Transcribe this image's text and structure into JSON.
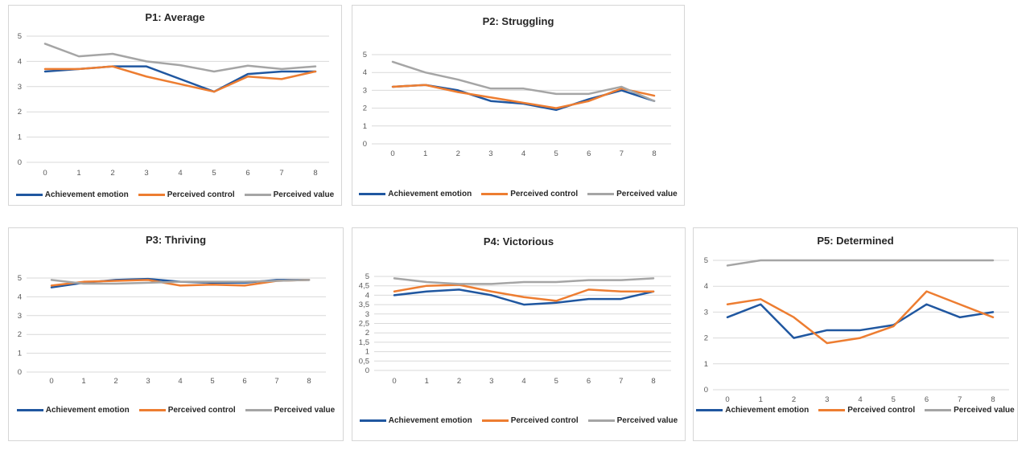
{
  "colors": {
    "achievement_emotion": "#2057A0",
    "perceived_control": "#ED7D31",
    "perceived_value": "#A5A5A5",
    "gridline": "#D9D9D9",
    "tick_text": "#595959",
    "title_text": "#262626"
  },
  "chart_data": [
    {
      "id": "p1",
      "type": "line",
      "title": "P1: Average",
      "x": [
        0,
        1,
        2,
        3,
        4,
        5,
        6,
        7,
        8
      ],
      "xlabel": "",
      "ylabel": "",
      "ylim": [
        0,
        5
      ],
      "yticks": [
        "0",
        "1",
        "2",
        "3",
        "4",
        "5"
      ],
      "grid": true,
      "legend_position": "bottom",
      "series": [
        {
          "name": "Achievement emotion",
          "color": "#2057A0",
          "values": [
            3.6,
            3.7,
            3.8,
            3.8,
            3.3,
            2.8,
            3.5,
            3.6,
            3.6
          ]
        },
        {
          "name": "Perceived control",
          "color": "#ED7D31",
          "values": [
            3.7,
            3.7,
            3.8,
            3.4,
            3.1,
            2.8,
            3.4,
            3.3,
            3.6
          ]
        },
        {
          "name": "Perceived value",
          "color": "#A5A5A5",
          "values": [
            4.7,
            4.2,
            4.3,
            4.0,
            3.85,
            3.6,
            3.83,
            3.7,
            3.8
          ]
        }
      ]
    },
    {
      "id": "p2",
      "type": "line",
      "title": "P2: Struggling",
      "x": [
        0,
        1,
        2,
        3,
        4,
        5,
        6,
        7,
        8
      ],
      "xlabel": "",
      "ylabel": "",
      "ylim": [
        0,
        5
      ],
      "yticks": [
        "0",
        "1",
        "2",
        "3",
        "4",
        "5"
      ],
      "grid": true,
      "legend_position": "bottom",
      "series": [
        {
          "name": "Achievement emotion",
          "color": "#2057A0",
          "values": [
            3.2,
            3.3,
            3.0,
            2.4,
            2.25,
            1.9,
            2.5,
            3.0,
            2.4
          ]
        },
        {
          "name": "Perceived control",
          "color": "#ED7D31",
          "values": [
            3.2,
            3.3,
            2.9,
            2.6,
            2.3,
            2.0,
            2.4,
            3.1,
            2.7
          ]
        },
        {
          "name": "Perceived value",
          "color": "#A5A5A5",
          "values": [
            4.6,
            4.0,
            3.6,
            3.1,
            3.1,
            2.8,
            2.8,
            3.2,
            2.4
          ]
        }
      ]
    },
    {
      "id": "p3",
      "type": "line",
      "title": "P3: Thriving",
      "x": [
        0,
        1,
        2,
        3,
        4,
        5,
        6,
        7,
        8
      ],
      "xlabel": "",
      "ylabel": "",
      "ylim": [
        0,
        5
      ],
      "yticks": [
        "0",
        "1",
        "2",
        "3",
        "4",
        "5"
      ],
      "grid": true,
      "legend_position": "bottom",
      "series": [
        {
          "name": "Achievement emotion",
          "color": "#2057A0",
          "values": [
            4.5,
            4.75,
            4.9,
            4.95,
            4.8,
            4.75,
            4.75,
            4.9,
            4.9
          ]
        },
        {
          "name": "Perceived control",
          "color": "#ED7D31",
          "values": [
            4.6,
            4.8,
            4.85,
            4.9,
            4.6,
            4.65,
            4.6,
            4.85,
            4.9
          ]
        },
        {
          "name": "Perceived value",
          "color": "#A5A5A5",
          "values": [
            4.9,
            4.7,
            4.7,
            4.75,
            4.8,
            4.8,
            4.8,
            4.85,
            4.9
          ]
        }
      ]
    },
    {
      "id": "p4",
      "type": "line",
      "title": "P4: Victorious",
      "x": [
        0,
        1,
        2,
        3,
        4,
        5,
        6,
        7,
        8
      ],
      "xlabel": "",
      "ylabel": "",
      "ylim": [
        0,
        5
      ],
      "yticks": [
        "0",
        "0,5",
        "1",
        "1,5",
        "2",
        "2,5",
        "3",
        "3,5",
        "4",
        "4,5",
        "5"
      ],
      "grid": true,
      "legend_position": "bottom",
      "series": [
        {
          "name": "Achievement emotion",
          "color": "#2057A0",
          "values": [
            4.0,
            4.2,
            4.3,
            4.0,
            3.5,
            3.6,
            3.8,
            3.8,
            4.2
          ]
        },
        {
          "name": "Perceived control",
          "color": "#ED7D31",
          "values": [
            4.2,
            4.5,
            4.55,
            4.2,
            3.9,
            3.7,
            4.3,
            4.2,
            4.2
          ]
        },
        {
          "name": "Perceived value",
          "color": "#A5A5A5",
          "values": [
            4.9,
            4.7,
            4.6,
            4.6,
            4.7,
            4.7,
            4.8,
            4.8,
            4.9
          ]
        }
      ]
    },
    {
      "id": "p5",
      "type": "line",
      "title": "P5: Determined",
      "x": [
        0,
        1,
        2,
        3,
        4,
        5,
        6,
        7,
        8
      ],
      "xlabel": "",
      "ylabel": "",
      "ylim": [
        0,
        5
      ],
      "yticks": [
        "0",
        "1",
        "2",
        "3",
        "4",
        "5"
      ],
      "grid": true,
      "legend_position": "bottom",
      "series": [
        {
          "name": "Achievement emotion",
          "color": "#2057A0",
          "values": [
            2.8,
            3.3,
            2.0,
            2.3,
            2.3,
            2.5,
            3.3,
            2.8,
            3.0
          ]
        },
        {
          "name": "Perceived control",
          "color": "#ED7D31",
          "values": [
            3.3,
            3.5,
            2.8,
            1.8,
            2.0,
            2.45,
            3.8,
            3.3,
            2.8
          ]
        },
        {
          "name": "Perceived value",
          "color": "#A5A5A5",
          "values": [
            4.8,
            5.0,
            5.0,
            5.0,
            5.0,
            5.0,
            5.0,
            5.0,
            5.0
          ]
        }
      ]
    }
  ]
}
